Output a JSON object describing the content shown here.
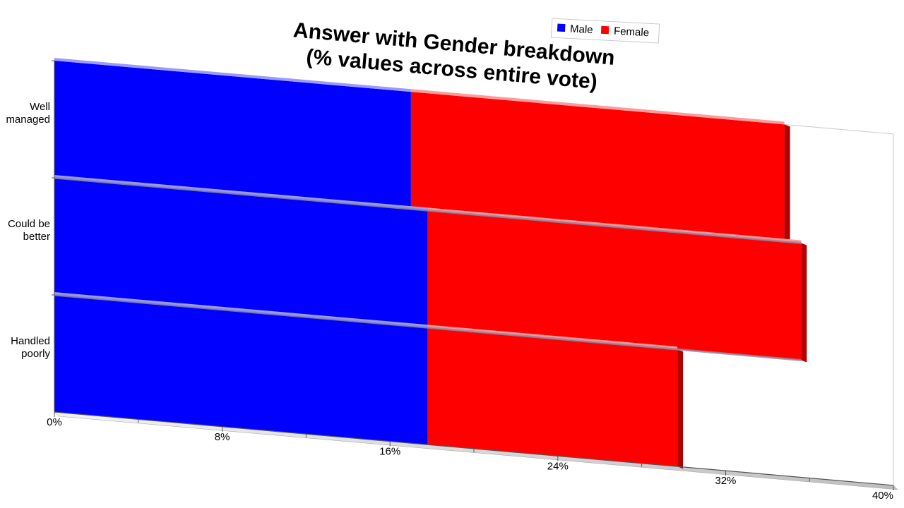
{
  "chart_data": {
    "type": "bar",
    "orientation": "horizontal",
    "stacked": true,
    "title": "Answer with Gender breakdown\n(% values across entire vote)",
    "categories": [
      "Well\nmanaged",
      "Could be\nbetter",
      "Handled\npoorly"
    ],
    "series": [
      {
        "name": "Male",
        "color": "#0000ff",
        "values": [
          17.0,
          17.8,
          17.8
        ]
      },
      {
        "name": "Female",
        "color": "#ff0000",
        "values": [
          17.8,
          17.8,
          11.9
        ]
      }
    ],
    "x_ticks": [
      "0%",
      "8%",
      "16%",
      "24%",
      "32%",
      "40%"
    ],
    "xlim": [
      0,
      40
    ],
    "legend": {
      "placement": "top-right",
      "entries": [
        "Male",
        "Female"
      ]
    },
    "perspective": "3d-tilted"
  }
}
